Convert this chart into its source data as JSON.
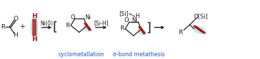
{
  "bg_color": "#ffffff",
  "cyan_highlight": "#aaf0f0",
  "red_color": "#cc0000",
  "blue_color": "#1a5cbf",
  "black_color": "#1a1a1a",
  "figsize": [
    3.78,
    0.86
  ],
  "dpi": 100,
  "label_cyclometallation": "cyclometallation",
  "label_sigma": "σ-bond metathesis",
  "label_ni0": "Ni(0)",
  "label_sih": "[Si-H]"
}
